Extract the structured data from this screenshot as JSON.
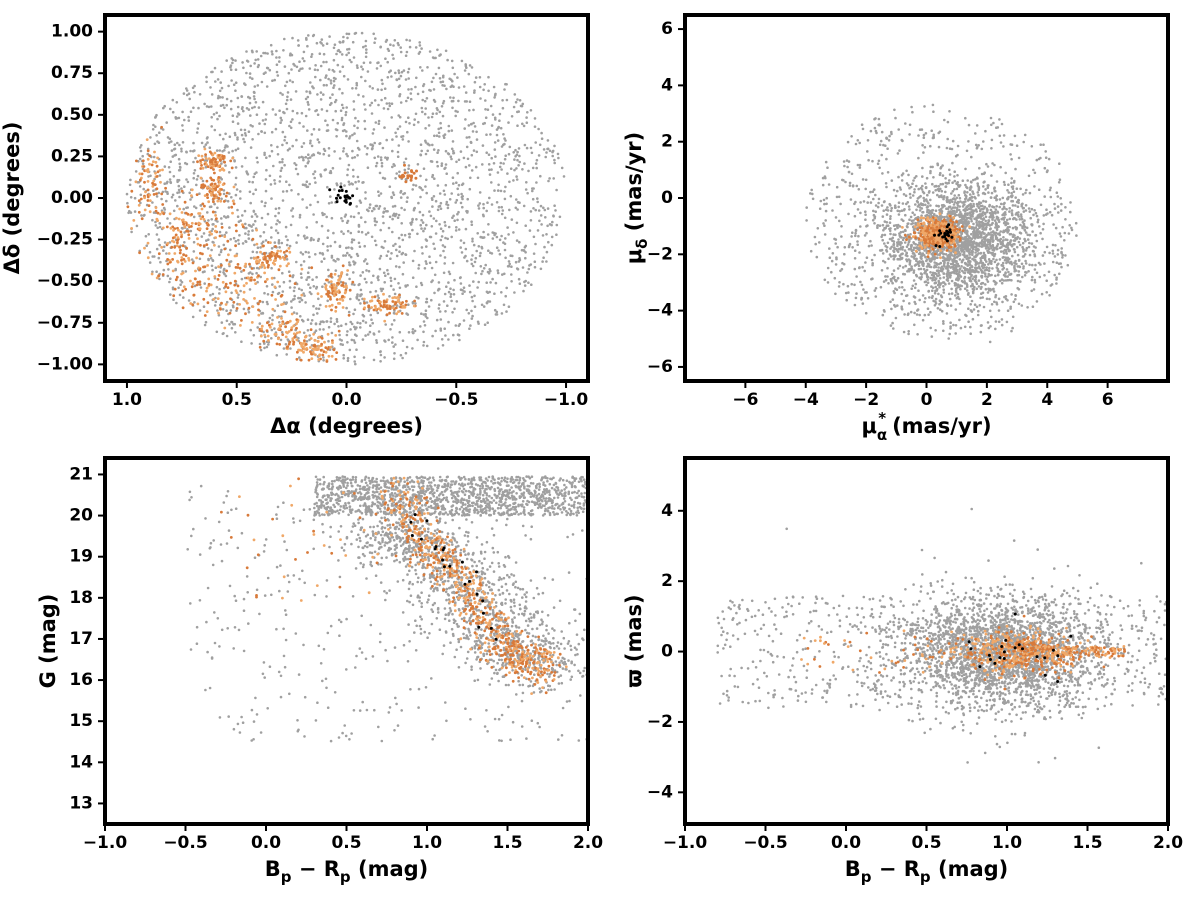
{
  "colors": {
    "field": "#a0a0a0",
    "cluster_light": "#f0a868",
    "cluster_dark": "#d87a3a",
    "members": "#000000",
    "frame": "#000000"
  },
  "chart_data": [
    {
      "id": "sky",
      "type": "scatter",
      "xlabel": "Δα (degrees)",
      "ylabel": "Δδ (degrees)",
      "xlim": [
        1.1,
        -1.1
      ],
      "ylim": [
        -1.1,
        1.1
      ],
      "xticks": [
        1.0,
        0.5,
        0.0,
        -0.5,
        -1.0
      ],
      "xtick_labels": [
        "1.0",
        "0.5",
        "0.0",
        "−0.5",
        "−1.0"
      ],
      "yticks": [
        1.0,
        0.75,
        0.5,
        0.25,
        0.0,
        -0.25,
        -0.5,
        -0.75,
        -1.0
      ],
      "ytick_labels": [
        "1.00",
        "0.75",
        "0.50",
        "0.25",
        "0.00",
        "−0.25",
        "−0.50",
        "−0.75",
        "−1.00"
      ],
      "series": [
        {
          "role": "field",
          "distribution": "uniform-disk",
          "center": [
            0,
            0
          ],
          "radius": [
            1.0,
            1.0
          ],
          "n": 2600
        },
        {
          "role": "cluster",
          "distribution": "patches",
          "n": 900,
          "patches": [
            [
              0.6,
              -0.55,
              0.15,
              0.12
            ],
            [
              0.75,
              -0.3,
              0.08,
              0.12
            ],
            [
              0.9,
              0.1,
              0.04,
              0.1
            ],
            [
              0.6,
              0.05,
              0.04,
              0.05
            ],
            [
              0.6,
              0.22,
              0.03,
              0.03
            ],
            [
              0.35,
              -0.35,
              0.05,
              0.04
            ],
            [
              0.27,
              -0.8,
              0.08,
              0.05
            ],
            [
              0.05,
              -0.55,
              0.03,
              0.06
            ],
            [
              -0.2,
              -0.65,
              0.05,
              0.03
            ],
            [
              0.15,
              -0.9,
              0.05,
              0.04
            ],
            [
              0.7,
              -0.15,
              0.1,
              0.05
            ],
            [
              0.45,
              -0.55,
              0.1,
              0.1
            ]
          ]
        },
        {
          "role": "dark_clump",
          "distribution": "gaussian",
          "center": [
            -0.28,
            0.13
          ],
          "sigma": [
            0.03,
            0.03
          ],
          "n": 20
        },
        {
          "role": "members",
          "distribution": "gaussian",
          "center": [
            0.0,
            0.0
          ],
          "sigma": [
            0.03,
            0.04
          ],
          "n": 22
        }
      ]
    },
    {
      "id": "proper-motion",
      "type": "scatter",
      "xlabel_main": "μ",
      "xlabel_sub": "α",
      "xlabel_sup": "*",
      "xlabel_units": "(mas/yr)",
      "ylabel_main": "μ",
      "ylabel_sub": "δ",
      "ylabel_units": "(mas/yr)",
      "xlim": [
        -8,
        8
      ],
      "ylim": [
        -6.5,
        6.5
      ],
      "xticks": [
        -6,
        -4,
        -2,
        0,
        2,
        4,
        6
      ],
      "xtick_labels": [
        "−6",
        "−4",
        "−2",
        "0",
        "2",
        "4",
        "6"
      ],
      "yticks": [
        6,
        4,
        2,
        0,
        -2,
        -4,
        -6
      ],
      "ytick_labels": [
        "6",
        "4",
        "2",
        "0",
        "−2",
        "−4",
        "−6"
      ],
      "series": [
        {
          "role": "field",
          "distribution": "gaussian",
          "center": [
            1.0,
            -1.5
          ],
          "sigma": [
            1.2,
            1.0
          ],
          "n": 2200
        },
        {
          "role": "field",
          "distribution": "uniform-disk",
          "center": [
            0.5,
            -0.8
          ],
          "radius": [
            4.5,
            4.2
          ],
          "n": 700
        },
        {
          "role": "cluster",
          "distribution": "gaussian",
          "center": [
            0.4,
            -1.3
          ],
          "sigma": [
            0.35,
            0.28
          ],
          "n": 450
        },
        {
          "role": "members",
          "distribution": "gaussian",
          "center": [
            0.5,
            -1.3
          ],
          "sigma": [
            0.2,
            0.2
          ],
          "n": 22
        }
      ]
    },
    {
      "id": "cmd",
      "type": "scatter",
      "xlabel_main": "B",
      "xlabel_sub1": "p",
      "xlabel_mid": " − R",
      "xlabel_sub2": "p",
      "xlabel_units": " (mag)",
      "ylabel": "G (mag)",
      "xlim": [
        -1.0,
        2.0
      ],
      "ylim": [
        12.5,
        21.4
      ],
      "xticks": [
        -1.0,
        -0.5,
        0.0,
        0.5,
        1.0,
        1.5,
        2.0
      ],
      "xtick_labels": [
        "−1.0",
        "−0.5",
        "0.0",
        "0.5",
        "1.0",
        "1.5",
        "2.0"
      ],
      "yticks": [
        21,
        20,
        19,
        18,
        17,
        16,
        15,
        14,
        13
      ],
      "ytick_labels": [
        "21",
        "20",
        "19",
        "18",
        "17",
        "16",
        "15",
        "14",
        "13"
      ],
      "series": [
        {
          "role": "field",
          "distribution": "band",
          "x": [
            0.3,
            2.0
          ],
          "y": [
            20.0,
            20.95
          ],
          "n": 1300
        },
        {
          "role": "field",
          "distribution": "sequence",
          "path": [
            [
              0.7,
              19.8
            ],
            [
              1.0,
              19.2
            ],
            [
              1.3,
              18.0
            ],
            [
              1.5,
              16.8
            ],
            [
              1.75,
              16.2
            ]
          ],
          "spread": [
            0.18,
            0.35
          ],
          "n": 1300
        },
        {
          "role": "field",
          "distribution": "band",
          "x": [
            -0.5,
            2.0
          ],
          "y": [
            14.5,
            20.8
          ],
          "n": 350
        },
        {
          "role": "cluster",
          "distribution": "sequence",
          "path": [
            [
              0.8,
              20.6
            ],
            [
              1.0,
              19.3
            ],
            [
              1.2,
              18.5
            ],
            [
              1.4,
              17.3
            ],
            [
              1.55,
              16.6
            ],
            [
              1.75,
              16.2
            ]
          ],
          "spread": [
            0.07,
            0.25
          ],
          "n": 650
        },
        {
          "role": "cluster",
          "distribution": "band",
          "x": [
            -0.3,
            0.9
          ],
          "y": [
            17.9,
            20.9
          ],
          "n": 40
        },
        {
          "role": "members",
          "distribution": "sequence",
          "path": [
            [
              0.85,
              20.4
            ],
            [
              1.0,
              19.6
            ],
            [
              1.15,
              19.0
            ],
            [
              1.3,
              18.0
            ],
            [
              1.45,
              16.8
            ]
          ],
          "spread": [
            0.04,
            0.2
          ],
          "n": 22
        }
      ]
    },
    {
      "id": "parallax",
      "type": "scatter",
      "xlabel_main": "B",
      "xlabel_sub1": "p",
      "xlabel_mid": " − R",
      "xlabel_sub2": "p",
      "xlabel_units": " (mag)",
      "ylabel": "ϖ (mas)",
      "xlim": [
        -1.0,
        2.0
      ],
      "ylim": [
        -4.9,
        5.5
      ],
      "xticks": [
        -1.0,
        -0.5,
        0.0,
        0.5,
        1.0,
        1.5,
        2.0
      ],
      "xtick_labels": [
        "−1.0",
        "−0.5",
        "0.0",
        "0.5",
        "1.0",
        "1.5",
        "2.0"
      ],
      "yticks": [
        4,
        2,
        0,
        -2,
        -4
      ],
      "ytick_labels": [
        "4",
        "2",
        "0",
        "−2",
        "−4"
      ],
      "series": [
        {
          "role": "field",
          "distribution": "gaussian",
          "center": [
            0.95,
            0.0
          ],
          "sigma": [
            0.3,
            0.75
          ],
          "n": 2200
        },
        {
          "role": "field",
          "distribution": "band",
          "x": [
            -0.8,
            2.0
          ],
          "y": [
            -1.6,
            1.6
          ],
          "n": 700
        },
        {
          "role": "field",
          "distribution": "gaussian",
          "center": [
            1.0,
            0.0
          ],
          "sigma": [
            0.4,
            1.3
          ],
          "n": 200
        },
        {
          "role": "cluster",
          "distribution": "gaussian",
          "center": [
            1.05,
            0.0
          ],
          "sigma": [
            0.2,
            0.3
          ],
          "n": 450
        },
        {
          "role": "cluster",
          "distribution": "band",
          "x": [
            1.1,
            1.75
          ],
          "y": [
            -0.15,
            0.15
          ],
          "n": 120
        },
        {
          "role": "cluster",
          "distribution": "band",
          "x": [
            -0.3,
            0.6
          ],
          "y": [
            -0.6,
            0.6
          ],
          "n": 40
        },
        {
          "role": "members",
          "distribution": "gaussian",
          "center": [
            1.05,
            0.05
          ],
          "sigma": [
            0.2,
            0.3
          ],
          "n": 22
        }
      ]
    }
  ]
}
